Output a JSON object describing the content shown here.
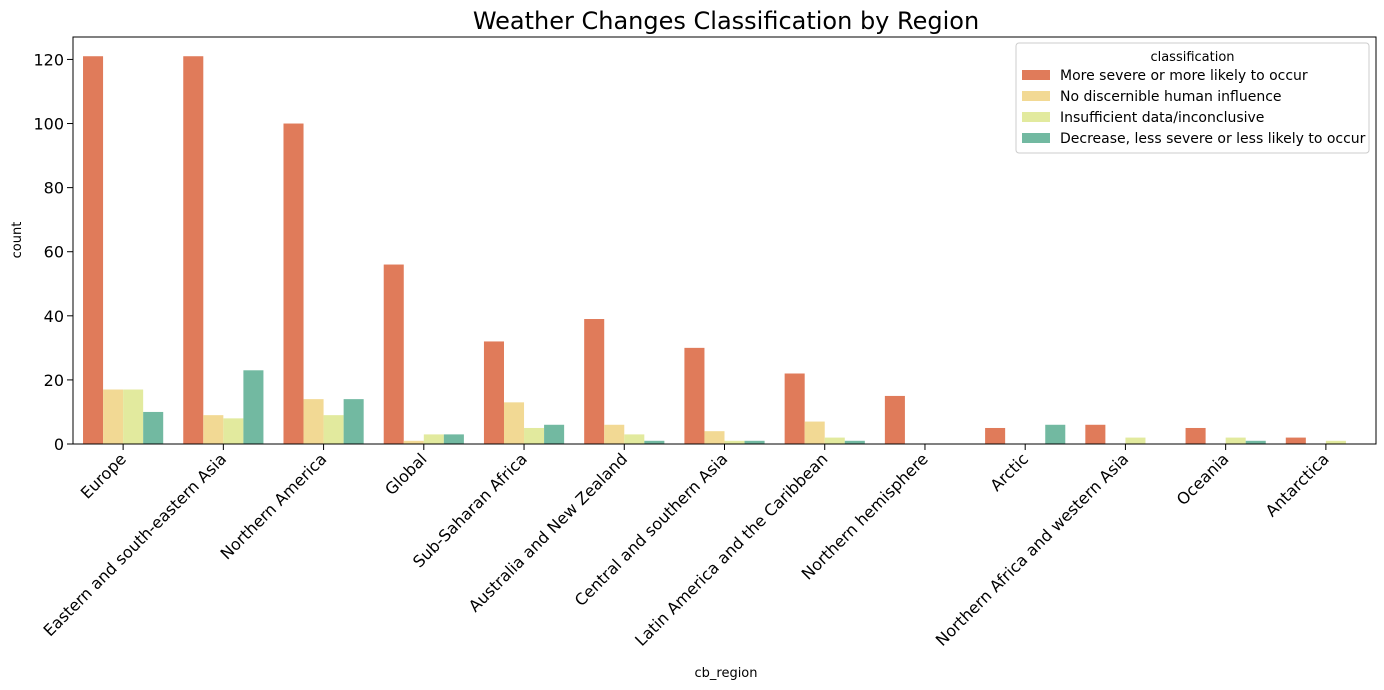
{
  "chart_data": {
    "type": "bar",
    "title": "Weather Changes Classification by Region",
    "xlabel": "cb_region",
    "ylabel": "count",
    "ylim": [
      0,
      127
    ],
    "yticks": [
      0,
      20,
      40,
      60,
      80,
      100,
      120
    ],
    "grid": false,
    "legend": {
      "title": "classification",
      "placement": "top-right"
    },
    "categories": [
      "Europe",
      "Eastern and south-eastern Asia",
      "Northern America",
      "Global",
      "Sub-Saharan Africa",
      "Australia and New Zealand",
      "Central and southern Asia",
      "Latin America and the Caribbean",
      "Northern hemisphere",
      "Arctic",
      "Northern Africa and western Asia",
      "Oceania",
      "Antarctica"
    ],
    "series": [
      {
        "name": "More severe or more likely to occur",
        "color": "#e07b5a",
        "values": [
          121,
          121,
          100,
          56,
          32,
          39,
          30,
          22,
          15,
          5,
          6,
          5,
          2
        ]
      },
      {
        "name": "No discernible human influence",
        "color": "#f2d994",
        "values": [
          17,
          9,
          14,
          1,
          13,
          6,
          4,
          7,
          0,
          0,
          0,
          0,
          0
        ]
      },
      {
        "name": "Insufficient data/inconclusive",
        "color": "#e2ea9e",
        "values": [
          17,
          8,
          9,
          3,
          5,
          3,
          1,
          2,
          0,
          0,
          2,
          2,
          1
        ]
      },
      {
        "name": "Decrease, less severe or less likely to occur",
        "color": "#72b9a1",
        "values": [
          10,
          23,
          14,
          3,
          6,
          1,
          1,
          1,
          0,
          6,
          0,
          1,
          0
        ]
      }
    ]
  }
}
